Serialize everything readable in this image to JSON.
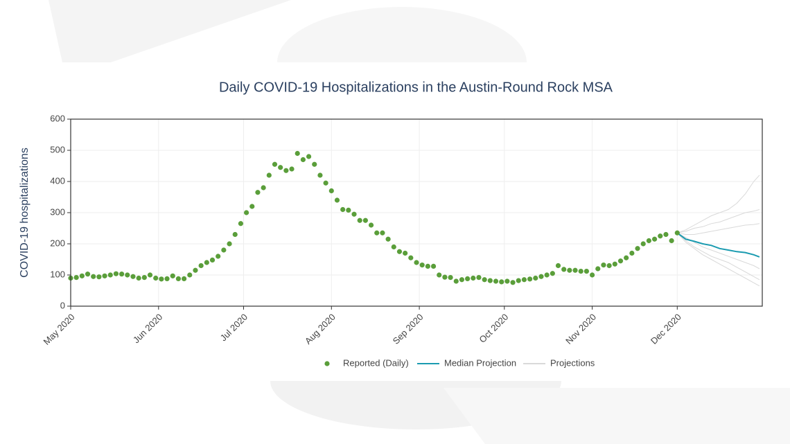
{
  "chart_data": {
    "type": "scatter",
    "title": "Daily COVID-19 Hospitalizations in the Austin-Round Rock MSA",
    "y_label": "COVID-19 hospitalizations",
    "xlim": [
      "2020-05-01",
      "2020-12-31"
    ],
    "ylim": [
      0,
      600
    ],
    "yticks": [
      0,
      100,
      200,
      300,
      400,
      500,
      600
    ],
    "xticks": [
      {
        "value": "2020-05-01",
        "label": "May 2020"
      },
      {
        "value": "2020-06-01",
        "label": "Jun 2020"
      },
      {
        "value": "2020-07-01",
        "label": "Jul 2020"
      },
      {
        "value": "2020-08-01",
        "label": "Aug 2020"
      },
      {
        "value": "2020-09-01",
        "label": "Sep 2020"
      },
      {
        "value": "2020-10-01",
        "label": "Oct 2020"
      },
      {
        "value": "2020-11-01",
        "label": "Nov 2020"
      },
      {
        "value": "2020-12-01",
        "label": "Dec 2020"
      }
    ],
    "grid": true,
    "series": [
      {
        "name": "Reported (Daily)",
        "type": "scatter",
        "color": "#5a9e3a",
        "x": [
          "2020-05-01",
          "2020-05-03",
          "2020-05-05",
          "2020-05-07",
          "2020-05-09",
          "2020-05-11",
          "2020-05-13",
          "2020-05-15",
          "2020-05-17",
          "2020-05-19",
          "2020-05-21",
          "2020-05-23",
          "2020-05-25",
          "2020-05-27",
          "2020-05-29",
          "2020-05-31",
          "2020-06-02",
          "2020-06-04",
          "2020-06-06",
          "2020-06-08",
          "2020-06-10",
          "2020-06-12",
          "2020-06-14",
          "2020-06-16",
          "2020-06-18",
          "2020-06-20",
          "2020-06-22",
          "2020-06-24",
          "2020-06-26",
          "2020-06-28",
          "2020-06-30",
          "2020-07-02",
          "2020-07-04",
          "2020-07-06",
          "2020-07-08",
          "2020-07-10",
          "2020-07-12",
          "2020-07-14",
          "2020-07-16",
          "2020-07-18",
          "2020-07-20",
          "2020-07-22",
          "2020-07-24",
          "2020-07-26",
          "2020-07-28",
          "2020-07-30",
          "2020-08-01",
          "2020-08-03",
          "2020-08-05",
          "2020-08-07",
          "2020-08-09",
          "2020-08-11",
          "2020-08-13",
          "2020-08-15",
          "2020-08-17",
          "2020-08-19",
          "2020-08-21",
          "2020-08-23",
          "2020-08-25",
          "2020-08-27",
          "2020-08-29",
          "2020-08-31",
          "2020-09-02",
          "2020-09-04",
          "2020-09-06",
          "2020-09-08",
          "2020-09-10",
          "2020-09-12",
          "2020-09-14",
          "2020-09-16",
          "2020-09-18",
          "2020-09-20",
          "2020-09-22",
          "2020-09-24",
          "2020-09-26",
          "2020-09-28",
          "2020-09-30",
          "2020-10-02",
          "2020-10-04",
          "2020-10-06",
          "2020-10-08",
          "2020-10-10",
          "2020-10-12",
          "2020-10-14",
          "2020-10-16",
          "2020-10-18",
          "2020-10-20",
          "2020-10-22",
          "2020-10-24",
          "2020-10-26",
          "2020-10-28",
          "2020-10-30",
          "2020-11-01",
          "2020-11-03",
          "2020-11-05",
          "2020-11-07",
          "2020-11-09",
          "2020-11-11",
          "2020-11-13",
          "2020-11-15",
          "2020-11-17",
          "2020-11-19",
          "2020-11-21",
          "2020-11-23",
          "2020-11-25",
          "2020-11-27",
          "2020-11-29",
          "2020-12-01"
        ],
        "values": [
          90,
          92,
          97,
          103,
          95,
          94,
          97,
          100,
          104,
          103,
          100,
          95,
          90,
          92,
          100,
          90,
          87,
          88,
          97,
          88,
          88,
          100,
          115,
          130,
          140,
          148,
          160,
          180,
          200,
          230,
          265,
          300,
          320,
          365,
          380,
          420,
          455,
          445,
          435,
          440,
          490,
          470,
          480,
          455,
          420,
          395,
          370,
          340,
          310,
          308,
          295,
          275,
          275,
          260,
          235,
          235,
          215,
          190,
          175,
          170,
          155,
          140,
          132,
          128,
          128,
          100,
          93,
          92,
          80,
          85,
          88,
          90,
          92,
          85,
          82,
          80,
          78,
          80,
          76,
          82,
          85,
          87,
          90,
          95,
          100,
          105,
          130,
          118,
          115,
          115,
          112,
          112,
          100,
          120,
          132,
          130,
          135,
          145,
          155,
          170,
          185,
          200,
          210,
          215,
          225,
          230,
          210,
          235
        ]
      },
      {
        "name": "Median Projection",
        "type": "line",
        "color": "#1a9bb0",
        "x": [
          "2020-12-01",
          "2020-12-04",
          "2020-12-07",
          "2020-12-10",
          "2020-12-13",
          "2020-12-16",
          "2020-12-19",
          "2020-12-22",
          "2020-12-25",
          "2020-12-28",
          "2020-12-30"
        ],
        "values": [
          235,
          215,
          208,
          200,
          195,
          185,
          180,
          175,
          172,
          165,
          158
        ]
      },
      {
        "name": "Projections",
        "type": "lines",
        "color": "#d9d9d9",
        "x": [
          "2020-12-01",
          "2020-12-04",
          "2020-12-07",
          "2020-12-10",
          "2020-12-13",
          "2020-12-16",
          "2020-12-19",
          "2020-12-22",
          "2020-12-25",
          "2020-12-28",
          "2020-12-30"
        ],
        "values": [
          [
            235,
            245,
            260,
            275,
            290,
            300,
            310,
            330,
            360,
            400,
            420
          ],
          [
            235,
            240,
            250,
            255,
            265,
            270,
            280,
            290,
            300,
            305,
            310
          ],
          [
            235,
            230,
            230,
            235,
            240,
            245,
            250,
            255,
            260,
            262,
            265
          ],
          [
            235,
            220,
            205,
            190,
            180,
            170,
            160,
            150,
            140,
            130,
            120
          ],
          [
            235,
            210,
            190,
            175,
            160,
            150,
            140,
            125,
            110,
            95,
            85
          ],
          [
            235,
            205,
            185,
            165,
            150,
            135,
            120,
            105,
            90,
            75,
            65
          ]
        ]
      }
    ]
  }
}
